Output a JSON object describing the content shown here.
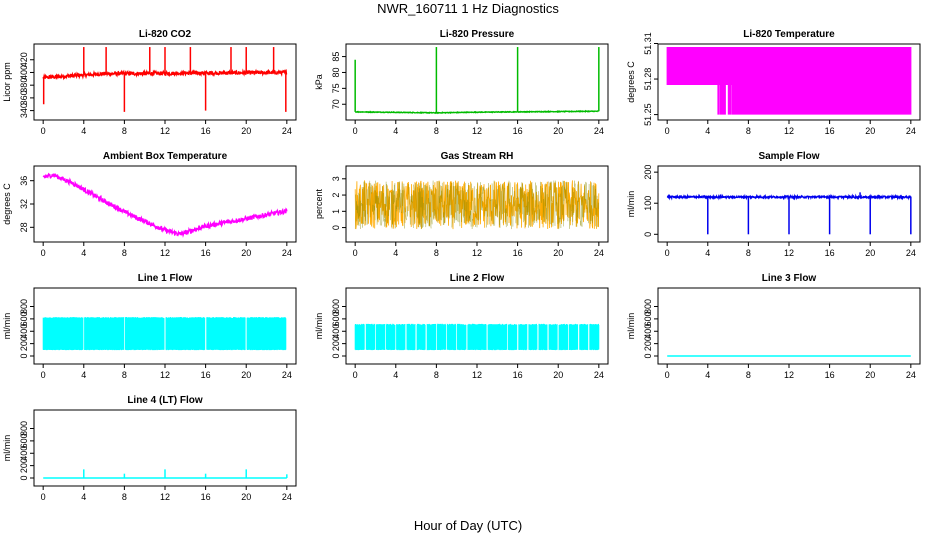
{
  "page": {
    "title": "NWR_160711  1 Hz Diagnostics",
    "x_axis_label": "Hour of Day (UTC)"
  },
  "chart_data": [
    {
      "id": "co2",
      "type": "line",
      "title": "Li-820 CO2",
      "ylabel": "Licor ppm",
      "color": "#ff0000",
      "xlim": [
        0,
        24
      ],
      "ylim": [
        330,
        440
      ],
      "xticks": [
        0,
        4,
        8,
        12,
        16,
        20,
        24
      ],
      "yticks": [
        340,
        360,
        380,
        400,
        420
      ],
      "baseline": 398,
      "noise": 3,
      "drift": [
        [
          0,
          392
        ],
        [
          6,
          398
        ],
        [
          24,
          400
        ]
      ],
      "spikes": [
        [
          4,
          440
        ],
        [
          6.2,
          440
        ],
        [
          8,
          338
        ],
        [
          10.5,
          440
        ],
        [
          12,
          440
        ],
        [
          14.5,
          440
        ],
        [
          16,
          340
        ],
        [
          18.5,
          440
        ],
        [
          20,
          440
        ],
        [
          22.7,
          440
        ],
        [
          23.9,
          338
        ],
        [
          0.05,
          350
        ]
      ]
    },
    {
      "id": "pressure",
      "type": "line",
      "title": "Li-820 Pressure",
      "ylabel": "kPa",
      "color": "#00bb00",
      "xlim": [
        0,
        24
      ],
      "ylim": [
        66,
        88
      ],
      "xticks": [
        0,
        4,
        8,
        12,
        16,
        20,
        24
      ],
      "yticks": [
        70,
        75,
        80,
        85
      ],
      "baseline": 67.6,
      "noise": 0.1,
      "drift": [
        [
          0,
          67.6
        ],
        [
          8,
          67.3
        ],
        [
          12,
          67.5
        ],
        [
          24,
          67.8
        ]
      ],
      "spikes": [
        [
          0,
          84
        ],
        [
          8,
          88
        ],
        [
          16,
          88
        ],
        [
          24,
          88
        ]
      ]
    },
    {
      "id": "li820temp",
      "type": "line",
      "title": "Li-820 Temperature",
      "ylabel": "degrees C",
      "color": "#ff00ff",
      "xlim": [
        0,
        24
      ],
      "ylim": [
        51.248,
        51.307
      ],
      "xticks": [
        0,
        4,
        8,
        12,
        16,
        20,
        24
      ],
      "yticks": [
        51.25,
        51.28,
        51.31
      ],
      "levels": [
        51.25,
        51.275,
        51.307
      ]
    },
    {
      "id": "ambient",
      "type": "line",
      "title": "Ambient Box Temperature",
      "ylabel": "degrees C",
      "color": "#ff00ff",
      "xlim": [
        0,
        24
      ],
      "ylim": [
        26,
        38
      ],
      "xticks": [
        0,
        4,
        8,
        12,
        16,
        20,
        24
      ],
      "yticks": [
        28,
        32,
        36
      ],
      "noise": 0.4,
      "drift": [
        [
          0,
          36.6
        ],
        [
          1,
          37
        ],
        [
          3,
          35.5
        ],
        [
          6,
          32.5
        ],
        [
          9,
          29.8
        ],
        [
          12,
          27.5
        ],
        [
          13.5,
          26.8
        ],
        [
          16,
          28.2
        ],
        [
          20,
          29.5
        ],
        [
          24,
          30.8
        ]
      ]
    },
    {
      "id": "rh",
      "type": "line",
      "title": "Gas Stream RH",
      "ylabel": "percent",
      "color": "#ffaa00",
      "color2": "#888800",
      "xlim": [
        0,
        24
      ],
      "ylim": [
        -0.7,
        3.6
      ],
      "xticks": [
        0,
        4,
        8,
        12,
        16,
        20,
        24
      ],
      "yticks": [
        0,
        1,
        2,
        3
      ],
      "baseline": 1.4,
      "noise": 1.5
    },
    {
      "id": "sampleflow",
      "type": "line",
      "title": "Sample Flow",
      "ylabel": "ml/min",
      "color": "#0000ee",
      "xlim": [
        0,
        24
      ],
      "ylim": [
        -15,
        210
      ],
      "xticks": [
        0,
        4,
        8,
        12,
        16,
        20,
        24
      ],
      "yticks": [
        0,
        100,
        200
      ],
      "baseline": 120,
      "noise": 3,
      "spikes": [
        [
          4,
          0
        ],
        [
          8,
          0
        ],
        [
          12,
          0
        ],
        [
          16,
          0
        ],
        [
          20,
          0
        ],
        [
          24,
          0
        ],
        [
          19,
          135
        ]
      ]
    },
    {
      "id": "line1",
      "type": "line",
      "title": "Line 1 Flow",
      "ylabel": "ml/min",
      "color": "#00ffff",
      "xlim": [
        0,
        24
      ],
      "ylim": [
        -80,
        1050
      ],
      "xticks": [
        0,
        4,
        8,
        12,
        16,
        20,
        24
      ],
      "yticks": [
        0,
        200,
        400,
        600,
        800
      ],
      "band": [
        100,
        620
      ],
      "gaps": [
        4,
        8,
        12,
        16,
        20,
        24
      ]
    },
    {
      "id": "line2",
      "type": "line",
      "title": "Line 2 Flow",
      "ylabel": "ml/min",
      "color": "#00ffff",
      "xlim": [
        0,
        24
      ],
      "ylim": [
        -80,
        1050
      ],
      "xticks": [
        0,
        4,
        8,
        12,
        16,
        20,
        24
      ],
      "yticks": [
        0,
        200,
        400,
        600,
        800
      ],
      "band": [
        100,
        510
      ],
      "gaps": [
        1,
        2,
        3,
        4,
        5,
        6,
        7,
        8,
        9,
        10,
        11,
        13,
        15,
        16,
        17,
        18,
        19,
        20,
        21,
        22,
        23
      ]
    },
    {
      "id": "line3",
      "type": "line",
      "title": "Line 3 Flow",
      "ylabel": "ml/min",
      "color": "#00ffff",
      "xlim": [
        0,
        24
      ],
      "ylim": [
        -80,
        1050
      ],
      "xticks": [
        0,
        4,
        8,
        12,
        16,
        20,
        24
      ],
      "yticks": [
        0,
        200,
        400,
        600,
        800
      ],
      "baseline": 0,
      "noise": 0
    },
    {
      "id": "line4",
      "type": "line",
      "title": "Line 4 (LT) Flow",
      "ylabel": "ml/min",
      "color": "#00ffff",
      "xlim": [
        0,
        24
      ],
      "ylim": [
        -80,
        1050
      ],
      "xticks": [
        0,
        4,
        8,
        12,
        16,
        20,
        24
      ],
      "yticks": [
        0,
        200,
        400,
        600,
        800
      ],
      "baseline": 0,
      "noise": 0,
      "spikes": [
        [
          4,
          140
        ],
        [
          8,
          70
        ],
        [
          12,
          140
        ],
        [
          16,
          70
        ],
        [
          20,
          140
        ],
        [
          24,
          60
        ]
      ]
    }
  ]
}
